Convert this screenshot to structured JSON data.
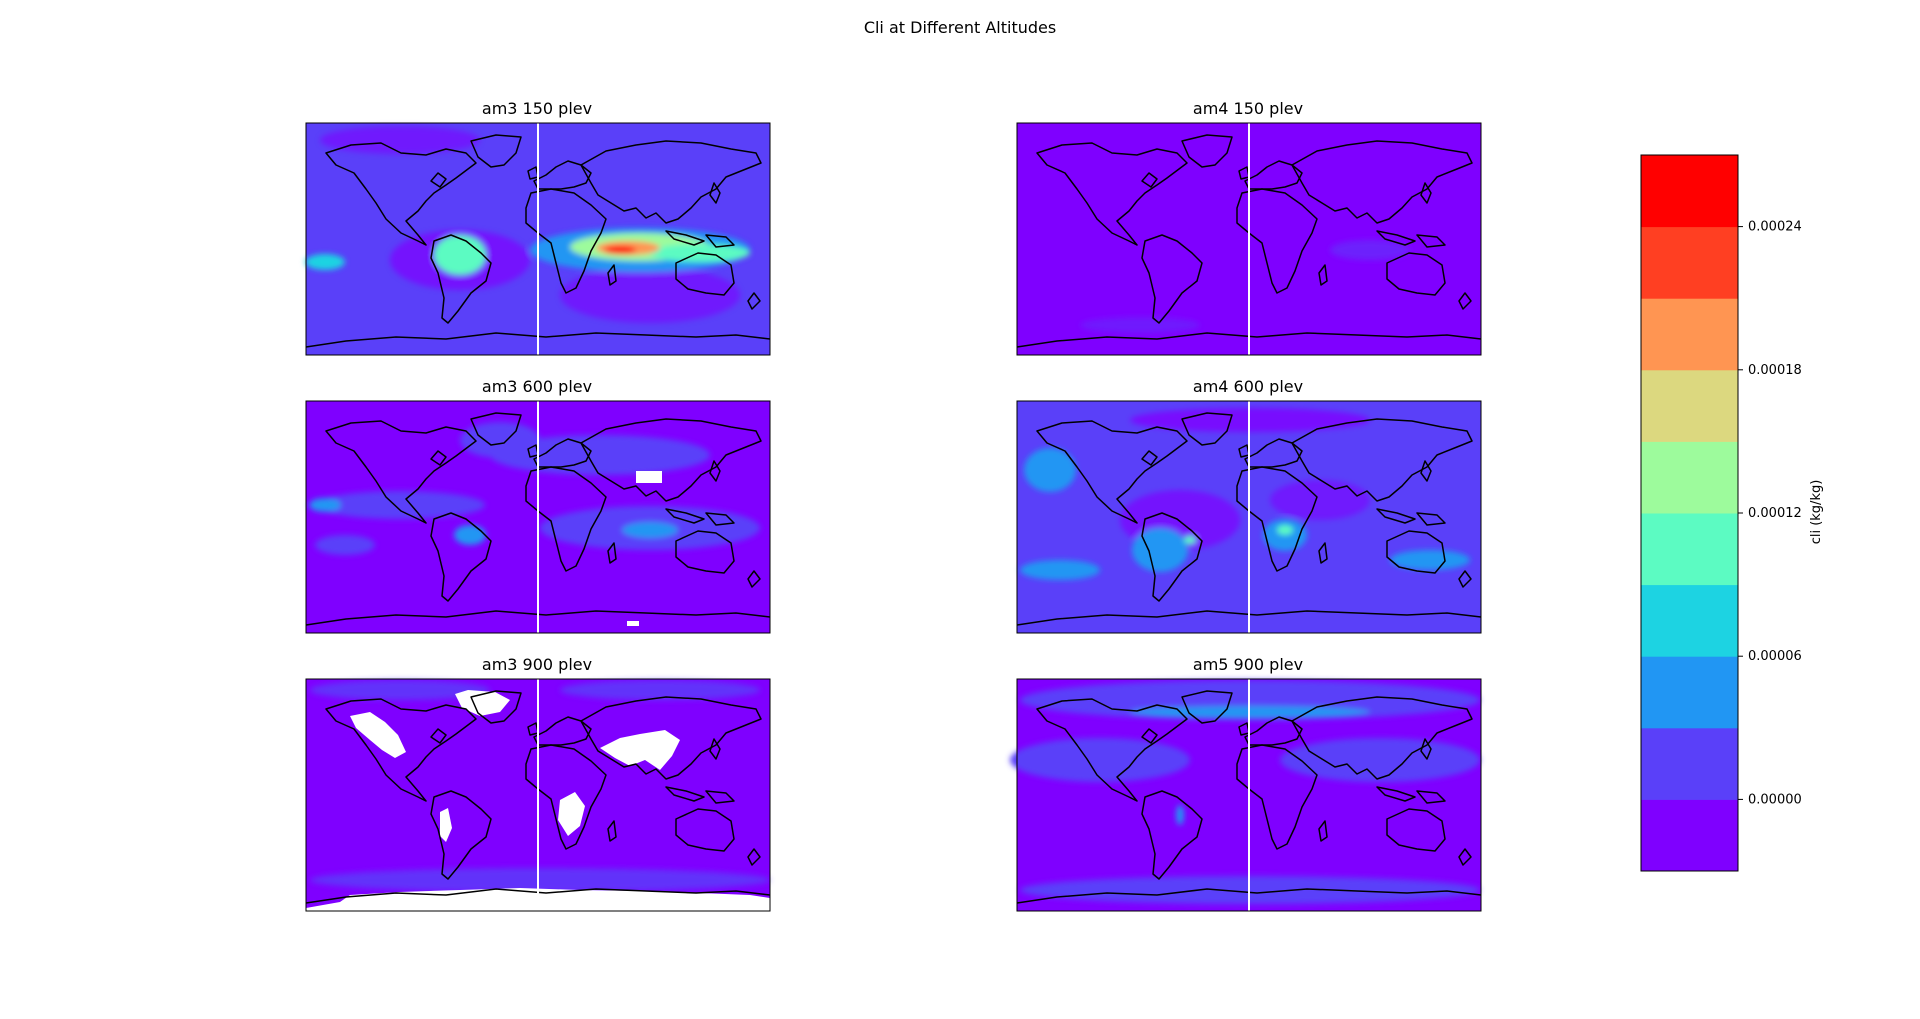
{
  "chart_data": {
    "type": "heatmap",
    "title": "Cli at Different Altitudes",
    "grid": false,
    "legend": "right",
    "panels": [
      {
        "name": "am3 150 plev",
        "row": 0,
        "col": 0
      },
      {
        "name": "am4 150 plev",
        "row": 0,
        "col": 1
      },
      {
        "name": "am3 600 plev",
        "row": 1,
        "col": 0
      },
      {
        "name": "am4 600 plev",
        "row": 1,
        "col": 1
      },
      {
        "name": "am3 900 plev",
        "row": 2,
        "col": 0
      },
      {
        "name": "am5 900 plev",
        "row": 2,
        "col": 1
      }
    ],
    "colorbar": {
      "label": "cli (kg/kg)",
      "vmin": -3e-05,
      "vmax": 0.00027,
      "levels": [
        -3e-05,
        0.0,
        3e-05,
        6e-05,
        9e-05,
        0.00012,
        0.00015,
        0.00018,
        0.00021,
        0.00024,
        0.00027
      ],
      "colors": [
        "#7f00ff",
        "#5a40f9",
        "#2196f3",
        "#1dd3e2",
        "#5cfbc2",
        "#9dfb9c",
        "#dcd87f",
        "#ff9552",
        "#ff3f22",
        "#ff0000"
      ],
      "ticks": [
        0.0,
        6e-05,
        0.00012,
        0.00018,
        0.00024
      ],
      "tick_labels": [
        "0.00000",
        "0.00006",
        "0.00012",
        "0.00018",
        "0.00024"
      ]
    }
  }
}
